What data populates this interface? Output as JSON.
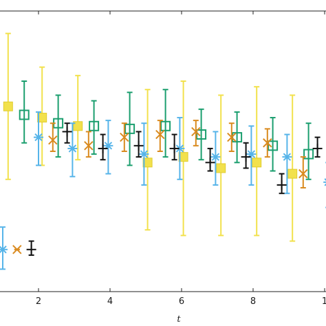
{
  "chart_data": {
    "type": "scatter",
    "title": "",
    "xlabel": "t",
    "ylabel": "",
    "x_ticks": [
      "2",
      "4",
      "6",
      "8",
      "1"
    ],
    "xlim": [
      1.0,
      10.2
    ],
    "ylim": [
      0,
      1
    ],
    "grid": false,
    "series": [
      {
        "marker": "square-filled",
        "color": "#f2e14c",
        "points": [
          {
            "x": 1.15,
            "y": 0.66,
            "lo": 0.4,
            "hi": 0.92
          },
          {
            "x": 2.1,
            "y": 0.62,
            "lo": 0.45,
            "hi": 0.8
          },
          {
            "x": 3.1,
            "y": 0.59,
            "lo": 0.47,
            "hi": 0.77
          },
          {
            "x": 5.05,
            "y": 0.46,
            "lo": 0.22,
            "hi": 0.72
          },
          {
            "x": 6.05,
            "y": 0.48,
            "lo": 0.2,
            "hi": 0.75
          },
          {
            "x": 7.1,
            "y": 0.44,
            "lo": 0.2,
            "hi": 0.7
          },
          {
            "x": 8.1,
            "y": 0.46,
            "lo": 0.2,
            "hi": 0.73
          },
          {
            "x": 9.1,
            "y": 0.42,
            "lo": 0.18,
            "hi": 0.7
          }
        ]
      },
      {
        "marker": "square-open",
        "color": "#1a9e6e",
        "points": [
          {
            "x": 1.6,
            "y": 0.63,
            "lo": 0.53,
            "hi": 0.75
          },
          {
            "x": 2.55,
            "y": 0.6,
            "lo": 0.48,
            "hi": 0.7
          },
          {
            "x": 3.55,
            "y": 0.59,
            "lo": 0.49,
            "hi": 0.68
          },
          {
            "x": 4.55,
            "y": 0.58,
            "lo": 0.45,
            "hi": 0.71
          },
          {
            "x": 5.55,
            "y": 0.59,
            "lo": 0.48,
            "hi": 0.72
          },
          {
            "x": 6.55,
            "y": 0.56,
            "lo": 0.47,
            "hi": 0.65
          },
          {
            "x": 7.55,
            "y": 0.55,
            "lo": 0.46,
            "hi": 0.64
          },
          {
            "x": 8.55,
            "y": 0.52,
            "lo": 0.43,
            "hi": 0.62
          },
          {
            "x": 9.55,
            "y": 0.49,
            "lo": 0.4,
            "hi": 0.6
          }
        ]
      },
      {
        "marker": "star",
        "color": "#56b4e9",
        "points": [
          {
            "x": 1.0,
            "y": 0.15,
            "lo": 0.08,
            "hi": 0.23
          },
          {
            "x": 2.0,
            "y": 0.55,
            "lo": 0.45,
            "hi": 0.64
          },
          {
            "x": 2.95,
            "y": 0.51,
            "lo": 0.41,
            "hi": 0.6
          },
          {
            "x": 3.95,
            "y": 0.52,
            "lo": 0.42,
            "hi": 0.61
          },
          {
            "x": 4.95,
            "y": 0.49,
            "lo": 0.38,
            "hi": 0.6
          },
          {
            "x": 5.95,
            "y": 0.51,
            "lo": 0.4,
            "hi": 0.62
          },
          {
            "x": 6.95,
            "y": 0.48,
            "lo": 0.38,
            "hi": 0.57
          },
          {
            "x": 7.95,
            "y": 0.49,
            "lo": 0.38,
            "hi": 0.59
          },
          {
            "x": 8.95,
            "y": 0.48,
            "lo": 0.35,
            "hi": 0.56
          },
          {
            "x": 10.1,
            "y": 0.39,
            "lo": 0.3,
            "hi": 0.46
          }
        ]
      },
      {
        "marker": "x",
        "color": "#d98a1e",
        "points": [
          {
            "x": 1.4,
            "y": 0.15,
            "lo": 0.15,
            "hi": 0.15
          },
          {
            "x": 2.4,
            "y": 0.54,
            "lo": 0.5,
            "hi": 0.6
          },
          {
            "x": 3.4,
            "y": 0.52,
            "lo": 0.48,
            "hi": 0.57
          },
          {
            "x": 4.4,
            "y": 0.55,
            "lo": 0.5,
            "hi": 0.6
          },
          {
            "x": 5.4,
            "y": 0.56,
            "lo": 0.5,
            "hi": 0.61
          },
          {
            "x": 6.4,
            "y": 0.57,
            "lo": 0.52,
            "hi": 0.61
          },
          {
            "x": 7.4,
            "y": 0.55,
            "lo": 0.5,
            "hi": 0.6
          },
          {
            "x": 8.4,
            "y": 0.53,
            "lo": 0.48,
            "hi": 0.58
          },
          {
            "x": 9.4,
            "y": 0.42,
            "lo": 0.37,
            "hi": 0.48
          }
        ]
      },
      {
        "marker": "plus",
        "color": "#111111",
        "points": [
          {
            "x": 1.8,
            "y": 0.15,
            "lo": 0.13,
            "hi": 0.18
          },
          {
            "x": 2.8,
            "y": 0.57,
            "lo": 0.53,
            "hi": 0.6
          },
          {
            "x": 3.8,
            "y": 0.51,
            "lo": 0.47,
            "hi": 0.56
          },
          {
            "x": 4.8,
            "y": 0.52,
            "lo": 0.48,
            "hi": 0.57
          },
          {
            "x": 5.8,
            "y": 0.51,
            "lo": 0.47,
            "hi": 0.56
          },
          {
            "x": 6.8,
            "y": 0.46,
            "lo": 0.43,
            "hi": 0.51
          },
          {
            "x": 7.8,
            "y": 0.48,
            "lo": 0.44,
            "hi": 0.53
          },
          {
            "x": 8.8,
            "y": 0.38,
            "lo": 0.35,
            "hi": 0.42
          },
          {
            "x": 9.8,
            "y": 0.51,
            "lo": 0.48,
            "hi": 0.55
          }
        ]
      }
    ]
  }
}
